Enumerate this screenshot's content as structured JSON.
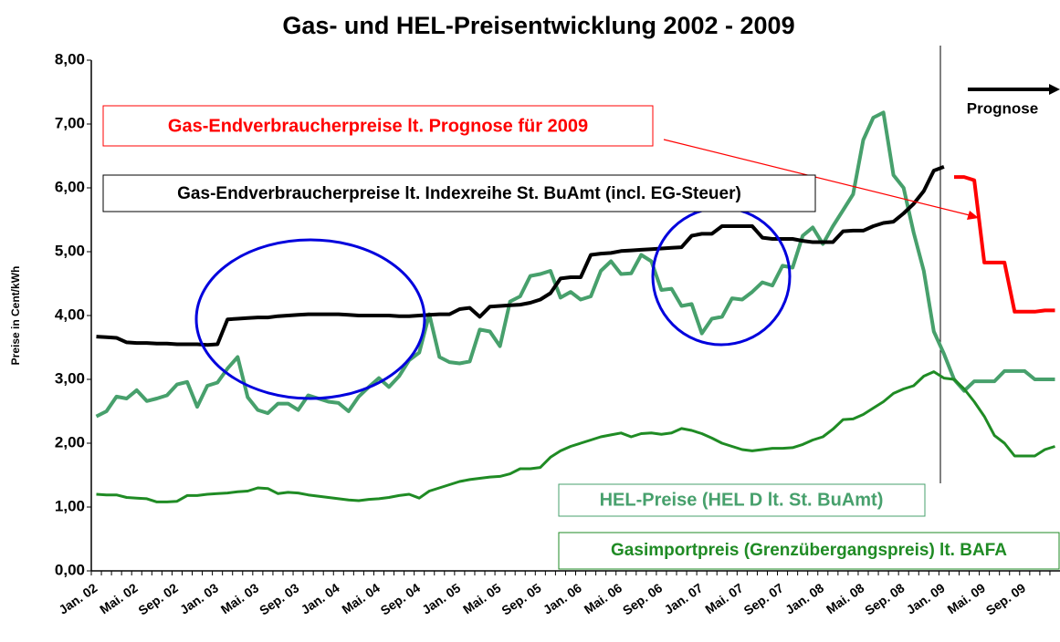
{
  "chart_data": {
    "type": "line",
    "title": "Gas- und HEL-Preisentwicklung 2002 - 2009",
    "y_label": "Preise in Cent/kWh",
    "annotation": "Prognose",
    "categories": [
      "Jan. 02",
      null,
      null,
      null,
      "Mai. 02",
      null,
      null,
      null,
      "Sep. 02",
      null,
      null,
      null,
      "Jan. 03",
      null,
      null,
      null,
      "Mai. 03",
      null,
      null,
      null,
      "Sep. 03",
      null,
      null,
      null,
      "Jan. 04",
      null,
      null,
      null,
      "Mai. 04",
      null,
      null,
      null,
      "Sep. 04",
      null,
      null,
      null,
      "Jan. 05",
      null,
      null,
      null,
      "Mai. 05",
      null,
      null,
      null,
      "Sep. 05",
      null,
      null,
      null,
      "Jan. 06",
      null,
      null,
      null,
      "Mai. 06",
      null,
      null,
      null,
      "Sep. 06",
      null,
      null,
      null,
      "Jan. 07",
      null,
      null,
      null,
      "Mai. 07",
      null,
      null,
      null,
      "Sep. 07",
      null,
      null,
      null,
      "Jan. 08",
      null,
      null,
      null,
      "Mai. 08",
      null,
      null,
      null,
      "Sep. 08",
      null,
      null,
      null,
      "Jan. 09",
      null,
      null,
      null,
      "Mai. 09",
      null,
      null,
      null,
      "Sep. 09",
      null,
      null,
      null
    ],
    "ylim": [
      0,
      8
    ],
    "yticks": [
      {
        "value": 0,
        "label": "0,00"
      },
      {
        "value": 1,
        "label": "1,00"
      },
      {
        "value": 2,
        "label": "2,00"
      },
      {
        "value": 3,
        "label": "3,00"
      },
      {
        "value": 4,
        "label": "4,00"
      },
      {
        "value": 5,
        "label": "5,00"
      },
      {
        "value": 6,
        "label": "6,00"
      },
      {
        "value": 7,
        "label": "7,00"
      },
      {
        "value": 8,
        "label": "8,00"
      }
    ],
    "grid": false,
    "series": [
      {
        "name": "Gas-Endverbraucherpreise lt. Prognose für 2009",
        "color": "#ff0000",
        "values": [
          null,
          null,
          null,
          null,
          null,
          null,
          null,
          null,
          null,
          null,
          null,
          null,
          null,
          null,
          null,
          null,
          null,
          null,
          null,
          null,
          null,
          null,
          null,
          null,
          null,
          null,
          null,
          null,
          null,
          null,
          null,
          null,
          null,
          null,
          null,
          null,
          null,
          null,
          null,
          null,
          null,
          null,
          null,
          null,
          null,
          null,
          null,
          null,
          null,
          null,
          null,
          null,
          null,
          null,
          null,
          null,
          null,
          null,
          null,
          null,
          null,
          null,
          null,
          null,
          null,
          null,
          null,
          null,
          null,
          null,
          null,
          null,
          null,
          null,
          null,
          null,
          null,
          null,
          null,
          null,
          null,
          null,
          null,
          null,
          null,
          6.17,
          6.17,
          6.12,
          4.83,
          4.83,
          4.83,
          4.06,
          4.06,
          4.06,
          4.08,
          4.08
        ]
      },
      {
        "name": "Gas-Endverbraucherpreise lt. Indexreihe St. BuAmt (incl. EG-Steuer)",
        "color": "#000000",
        "values": [
          3.67,
          3.66,
          3.65,
          3.58,
          3.57,
          3.57,
          3.56,
          3.56,
          3.55,
          3.55,
          3.55,
          3.54,
          3.55,
          3.94,
          3.95,
          3.96,
          3.97,
          3.97,
          3.99,
          4.0,
          4.01,
          4.02,
          4.02,
          4.02,
          4.02,
          4.01,
          4.0,
          4.0,
          4.0,
          4.0,
          3.99,
          3.99,
          4.0,
          4.01,
          4.02,
          4.02,
          4.1,
          4.12,
          3.98,
          4.14,
          4.15,
          4.16,
          4.17,
          4.2,
          4.25,
          4.35,
          4.58,
          4.6,
          4.6,
          4.95,
          4.97,
          4.98,
          5.01,
          5.02,
          5.03,
          5.04,
          5.05,
          5.06,
          5.07,
          5.25,
          5.28,
          5.28,
          5.4,
          5.4,
          5.4,
          5.4,
          5.22,
          5.2,
          5.2,
          5.2,
          5.17,
          5.15,
          5.15,
          5.15,
          5.32,
          5.33,
          5.33,
          5.4,
          5.45,
          5.47,
          5.6,
          5.75,
          5.95,
          6.27,
          6.33,
          null,
          null,
          null,
          null,
          null,
          null,
          null,
          null,
          null,
          null,
          null
        ]
      },
      {
        "name": "HEL-Preise (HEL D lt. St. BuAmt)",
        "color": "#47a06c",
        "values": [
          2.42,
          2.5,
          2.73,
          2.7,
          2.83,
          2.66,
          2.7,
          2.75,
          2.92,
          2.96,
          2.57,
          2.9,
          2.95,
          3.17,
          3.35,
          2.72,
          2.52,
          2.47,
          2.62,
          2.62,
          2.52,
          2.75,
          2.7,
          2.65,
          2.63,
          2.5,
          2.73,
          2.88,
          3.02,
          2.88,
          3.05,
          3.3,
          3.42,
          4.02,
          3.35,
          3.27,
          3.25,
          3.28,
          3.78,
          3.75,
          3.52,
          4.22,
          4.3,
          4.62,
          4.65,
          4.7,
          4.28,
          4.37,
          4.25,
          4.3,
          4.7,
          4.85,
          4.65,
          4.66,
          4.95,
          4.85,
          4.4,
          4.42,
          4.15,
          4.18,
          3.72,
          3.95,
          3.98,
          4.27,
          4.25,
          4.37,
          4.52,
          4.47,
          4.78,
          4.75,
          5.25,
          5.38,
          5.12,
          5.4,
          5.65,
          5.9,
          6.75,
          7.1,
          7.18,
          6.2,
          6.0,
          5.3,
          4.7,
          3.75,
          3.4,
          3.0,
          2.82,
          2.97,
          2.97,
          2.97,
          3.13,
          3.13,
          3.13,
          3.0,
          3.0,
          3.0
        ]
      },
      {
        "name": "Gasimportpreis (Grenzübergangspreis) lt. BAFA",
        "color": "#1f8b24",
        "values": [
          1.2,
          1.19,
          1.19,
          1.15,
          1.14,
          1.13,
          1.08,
          1.08,
          1.09,
          1.18,
          1.18,
          1.2,
          1.21,
          1.22,
          1.24,
          1.25,
          1.3,
          1.29,
          1.21,
          1.23,
          1.22,
          1.19,
          1.17,
          1.15,
          1.13,
          1.11,
          1.1,
          1.12,
          1.13,
          1.15,
          1.18,
          1.2,
          1.14,
          1.25,
          1.3,
          1.35,
          1.4,
          1.43,
          1.45,
          1.47,
          1.48,
          1.52,
          1.6,
          1.6,
          1.62,
          1.78,
          1.88,
          1.95,
          2.0,
          2.05,
          2.1,
          2.13,
          2.16,
          2.1,
          2.15,
          2.16,
          2.14,
          2.16,
          2.23,
          2.2,
          2.15,
          2.08,
          2.0,
          1.95,
          1.9,
          1.88,
          1.9,
          1.92,
          1.92,
          1.93,
          1.98,
          2.05,
          2.1,
          2.22,
          2.37,
          2.38,
          2.45,
          2.55,
          2.65,
          2.78,
          2.85,
          2.9,
          3.05,
          3.12,
          3.02,
          3.0,
          2.85,
          2.65,
          2.42,
          2.12,
          2.0,
          1.8,
          1.8,
          1.8,
          1.9,
          1.95
        ]
      }
    ]
  }
}
